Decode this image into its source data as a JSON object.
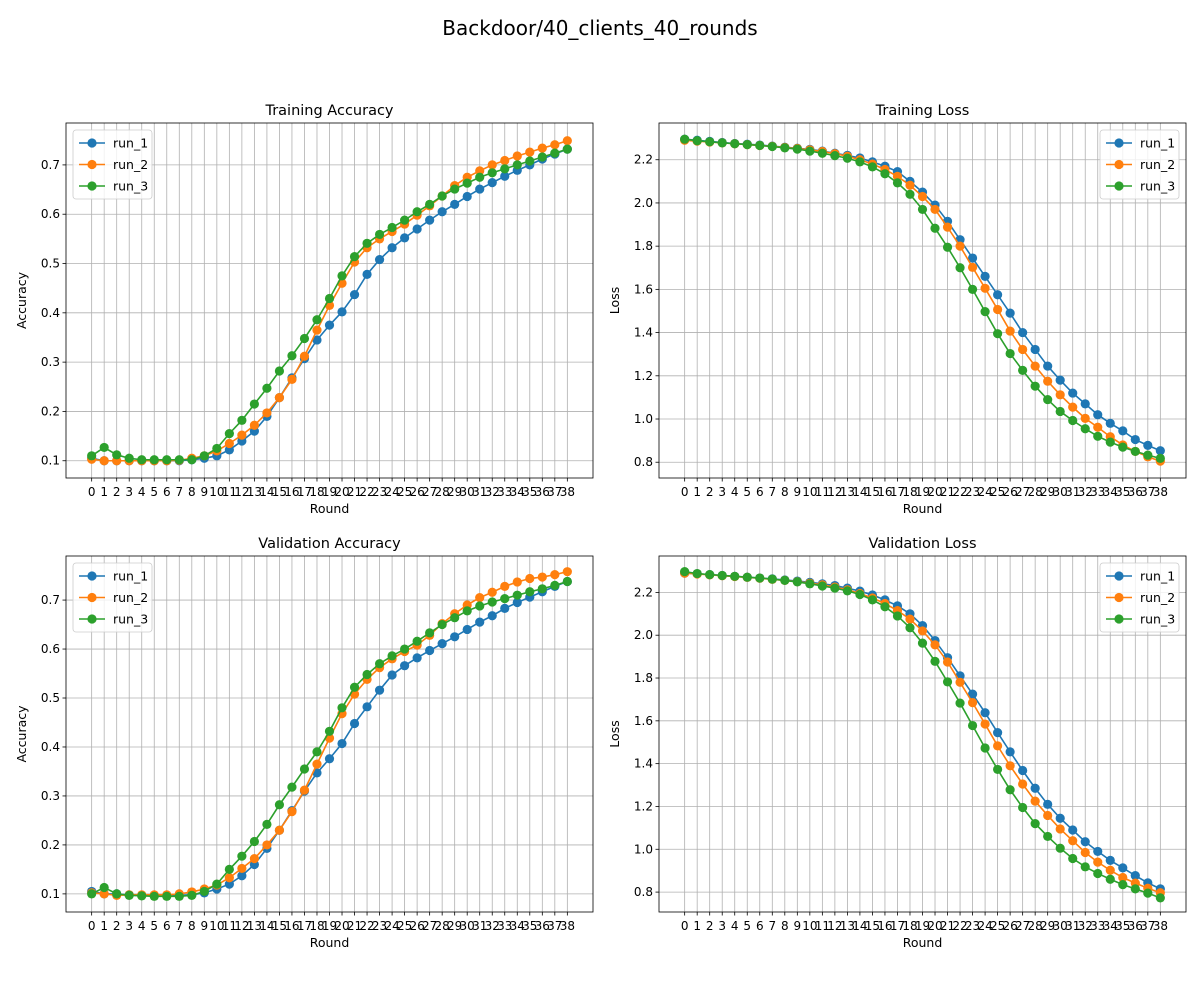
{
  "figure": {
    "title": "Backdoor/40_clients_40_rounds"
  },
  "series_colors": {
    "run_1": "#1f77b4",
    "run_2": "#ff7f0e",
    "run_3": "#2ca02c"
  },
  "chart_data": [
    {
      "type": "line",
      "title": "Training Accuracy",
      "xlabel": "Round",
      "ylabel": "Accuracy",
      "ylim": [
        0.065,
        0.785
      ],
      "yticks": [
        0.1,
        0.2,
        0.3,
        0.4,
        0.5,
        0.6,
        0.7
      ],
      "ytick_labels": [
        "0.1",
        "0.2",
        "0.3",
        "0.4",
        "0.5",
        "0.6",
        "0.7"
      ],
      "grid": true,
      "legend": "upper-left",
      "x": [
        0,
        1,
        2,
        3,
        4,
        5,
        6,
        7,
        8,
        9,
        10,
        11,
        12,
        13,
        14,
        15,
        16,
        17,
        18,
        19,
        20,
        21,
        22,
        23,
        24,
        25,
        26,
        27,
        28,
        29,
        30,
        31,
        32,
        33,
        34,
        35,
        36,
        37,
        38
      ],
      "series": [
        {
          "name": "run_1",
          "values": [
            0.105,
            0.1,
            0.1,
            0.1,
            0.1,
            0.1,
            0.1,
            0.1,
            0.102,
            0.105,
            0.11,
            0.122,
            0.14,
            0.16,
            0.19,
            0.228,
            0.268,
            0.307,
            0.345,
            0.375,
            0.402,
            0.437,
            0.478,
            0.508,
            0.532,
            0.552,
            0.57,
            0.588,
            0.605,
            0.62,
            0.636,
            0.651,
            0.664,
            0.677,
            0.689,
            0.7,
            0.712,
            0.722,
            0.732
          ]
        },
        {
          "name": "run_2",
          "values": [
            0.103,
            0.1,
            0.1,
            0.1,
            0.1,
            0.1,
            0.1,
            0.101,
            0.105,
            0.11,
            0.12,
            0.135,
            0.152,
            0.172,
            0.197,
            0.228,
            0.265,
            0.312,
            0.365,
            0.415,
            0.46,
            0.503,
            0.532,
            0.55,
            0.565,
            0.58,
            0.598,
            0.617,
            0.637,
            0.658,
            0.675,
            0.688,
            0.7,
            0.709,
            0.718,
            0.726,
            0.734,
            0.741,
            0.749
          ]
        },
        {
          "name": "run_3",
          "values": [
            0.11,
            0.127,
            0.112,
            0.105,
            0.102,
            0.102,
            0.102,
            0.102,
            0.102,
            0.11,
            0.125,
            0.155,
            0.182,
            0.215,
            0.247,
            0.282,
            0.313,
            0.348,
            0.386,
            0.429,
            0.475,
            0.514,
            0.541,
            0.559,
            0.573,
            0.588,
            0.605,
            0.62,
            0.637,
            0.651,
            0.663,
            0.675,
            0.684,
            0.692,
            0.7,
            0.708,
            0.716,
            0.724,
            0.732
          ]
        }
      ]
    },
    {
      "type": "line",
      "title": "Training Loss",
      "xlabel": "Round",
      "ylabel": "Loss",
      "ylim": [
        0.727,
        2.37
      ],
      "yticks": [
        0.8,
        1.0,
        1.2,
        1.4,
        1.6,
        1.8,
        2.0,
        2.2
      ],
      "ytick_labels": [
        "0.8",
        "1.0",
        "1.2",
        "1.4",
        "1.6",
        "1.8",
        "2.0",
        "2.2"
      ],
      "grid": true,
      "legend": "upper-right",
      "x": [
        0,
        1,
        2,
        3,
        4,
        5,
        6,
        7,
        8,
        9,
        10,
        11,
        12,
        13,
        14,
        15,
        16,
        17,
        18,
        19,
        20,
        21,
        22,
        23,
        24,
        25,
        26,
        27,
        28,
        29,
        30,
        31,
        32,
        33,
        34,
        35,
        36,
        37,
        38
      ],
      "series": [
        {
          "name": "run_1",
          "values": [
            2.295,
            2.29,
            2.285,
            2.28,
            2.275,
            2.272,
            2.268,
            2.263,
            2.258,
            2.253,
            2.248,
            2.24,
            2.23,
            2.22,
            2.208,
            2.19,
            2.17,
            2.145,
            2.1,
            2.05,
            1.99,
            1.915,
            1.83,
            1.745,
            1.66,
            1.575,
            1.49,
            1.4,
            1.322,
            1.245,
            1.18,
            1.12,
            1.07,
            1.02,
            0.98,
            0.945,
            0.905,
            0.878,
            0.853
          ]
        },
        {
          "name": "run_2",
          "values": [
            2.29,
            2.286,
            2.282,
            2.278,
            2.274,
            2.27,
            2.266,
            2.262,
            2.257,
            2.252,
            2.246,
            2.238,
            2.228,
            2.216,
            2.2,
            2.18,
            2.155,
            2.123,
            2.082,
            2.03,
            1.97,
            1.888,
            1.8,
            1.702,
            1.605,
            1.507,
            1.407,
            1.322,
            1.245,
            1.175,
            1.112,
            1.055,
            1.003,
            0.962,
            0.918,
            0.88,
            0.85,
            0.825,
            0.805
          ]
        },
        {
          "name": "run_3",
          "values": [
            2.295,
            2.288,
            2.283,
            2.278,
            2.274,
            2.27,
            2.266,
            2.261,
            2.255,
            2.249,
            2.24,
            2.23,
            2.219,
            2.207,
            2.19,
            2.167,
            2.135,
            2.093,
            2.04,
            1.97,
            1.883,
            1.795,
            1.7,
            1.6,
            1.497,
            1.395,
            1.303,
            1.225,
            1.152,
            1.09,
            1.035,
            0.993,
            0.955,
            0.92,
            0.893,
            0.87,
            0.85,
            0.833,
            0.818
          ]
        }
      ]
    },
    {
      "type": "line",
      "title": "Validation Accuracy",
      "xlabel": "Round",
      "ylabel": "Accuracy",
      "ylim": [
        0.063,
        0.79
      ],
      "yticks": [
        0.1,
        0.2,
        0.3,
        0.4,
        0.5,
        0.6,
        0.7
      ],
      "ytick_labels": [
        "0.1",
        "0.2",
        "0.3",
        "0.4",
        "0.5",
        "0.6",
        "0.7"
      ],
      "grid": true,
      "legend": "upper-left",
      "x": [
        0,
        1,
        2,
        3,
        4,
        5,
        6,
        7,
        8,
        9,
        10,
        11,
        12,
        13,
        14,
        15,
        16,
        17,
        18,
        19,
        20,
        21,
        22,
        23,
        24,
        25,
        26,
        27,
        28,
        29,
        30,
        31,
        32,
        33,
        34,
        35,
        36,
        37,
        38
      ],
      "series": [
        {
          "name": "run_1",
          "values": [
            0.105,
            0.1,
            0.1,
            0.098,
            0.097,
            0.097,
            0.097,
            0.097,
            0.098,
            0.102,
            0.11,
            0.12,
            0.137,
            0.16,
            0.193,
            0.23,
            0.27,
            0.31,
            0.347,
            0.376,
            0.407,
            0.448,
            0.482,
            0.516,
            0.547,
            0.566,
            0.582,
            0.597,
            0.611,
            0.625,
            0.64,
            0.655,
            0.668,
            0.683,
            0.695,
            0.706,
            0.717,
            0.728,
            0.738
          ]
        },
        {
          "name": "run_2",
          "values": [
            0.102,
            0.1,
            0.097,
            0.098,
            0.098,
            0.098,
            0.098,
            0.1,
            0.104,
            0.11,
            0.118,
            0.133,
            0.152,
            0.172,
            0.2,
            0.23,
            0.268,
            0.312,
            0.365,
            0.418,
            0.468,
            0.508,
            0.538,
            0.562,
            0.58,
            0.595,
            0.608,
            0.628,
            0.652,
            0.672,
            0.69,
            0.705,
            0.716,
            0.728,
            0.737,
            0.744,
            0.747,
            0.752,
            0.758
          ]
        },
        {
          "name": "run_3",
          "values": [
            0.1,
            0.113,
            0.1,
            0.097,
            0.096,
            0.095,
            0.095,
            0.095,
            0.097,
            0.105,
            0.12,
            0.15,
            0.177,
            0.207,
            0.242,
            0.282,
            0.318,
            0.355,
            0.39,
            0.432,
            0.48,
            0.522,
            0.548,
            0.57,
            0.586,
            0.6,
            0.616,
            0.633,
            0.65,
            0.664,
            0.678,
            0.688,
            0.696,
            0.703,
            0.71,
            0.717,
            0.723,
            0.73,
            0.738
          ]
        }
      ]
    },
    {
      "type": "line",
      "title": "Validation Loss",
      "xlabel": "Round",
      "ylabel": "Loss",
      "ylim": [
        0.707,
        2.37
      ],
      "yticks": [
        0.8,
        1.0,
        1.2,
        1.4,
        1.6,
        1.8,
        2.0,
        2.2
      ],
      "ytick_labels": [
        "0.8",
        "1.0",
        "1.2",
        "1.4",
        "1.6",
        "1.8",
        "2.0",
        "2.2"
      ],
      "grid": true,
      "legend": "upper-right",
      "x": [
        0,
        1,
        2,
        3,
        4,
        5,
        6,
        7,
        8,
        9,
        10,
        11,
        12,
        13,
        14,
        15,
        16,
        17,
        18,
        19,
        20,
        21,
        22,
        23,
        24,
        25,
        26,
        27,
        28,
        29,
        30,
        31,
        32,
        33,
        34,
        35,
        36,
        37,
        38
      ],
      "series": [
        {
          "name": "run_1",
          "values": [
            2.29,
            2.287,
            2.283,
            2.279,
            2.275,
            2.271,
            2.267,
            2.263,
            2.258,
            2.253,
            2.247,
            2.24,
            2.232,
            2.22,
            2.206,
            2.188,
            2.165,
            2.137,
            2.1,
            2.045,
            1.975,
            1.895,
            1.81,
            1.725,
            1.638,
            1.545,
            1.455,
            1.368,
            1.285,
            1.21,
            1.145,
            1.09,
            1.035,
            0.99,
            0.948,
            0.913,
            0.877,
            0.843,
            0.815
          ]
        },
        {
          "name": "run_2",
          "values": [
            2.29,
            2.286,
            2.282,
            2.278,
            2.274,
            2.27,
            2.266,
            2.261,
            2.256,
            2.25,
            2.243,
            2.235,
            2.225,
            2.212,
            2.195,
            2.174,
            2.148,
            2.115,
            2.075,
            2.02,
            1.955,
            1.875,
            1.78,
            1.685,
            1.585,
            1.483,
            1.39,
            1.305,
            1.225,
            1.158,
            1.095,
            1.04,
            0.985,
            0.94,
            0.902,
            0.868,
            0.842,
            0.818,
            0.797
          ]
        },
        {
          "name": "run_3",
          "values": [
            2.297,
            2.288,
            2.283,
            2.279,
            2.275,
            2.271,
            2.267,
            2.262,
            2.256,
            2.249,
            2.24,
            2.23,
            2.22,
            2.207,
            2.19,
            2.165,
            2.133,
            2.09,
            2.035,
            1.963,
            1.878,
            1.782,
            1.683,
            1.578,
            1.473,
            1.373,
            1.278,
            1.195,
            1.12,
            1.06,
            1.005,
            0.957,
            0.918,
            0.887,
            0.86,
            0.835,
            0.815,
            0.795,
            0.773
          ]
        }
      ]
    }
  ]
}
